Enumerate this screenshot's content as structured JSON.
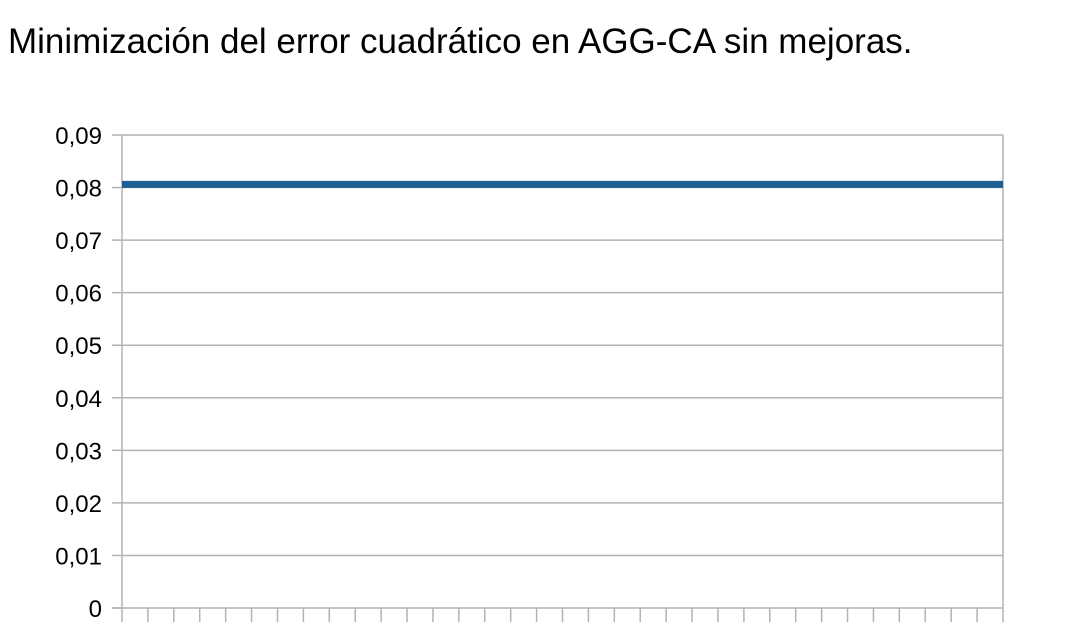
{
  "chart_data": {
    "type": "line",
    "title": "Minimización del error cuadrático en AGG-CA sin mejoras.",
    "xlabel": "",
    "ylabel": "",
    "ylim": [
      0,
      0.09
    ],
    "yticks": [
      "0",
      "0,01",
      "0,02",
      "0,03",
      "0,04",
      "0,05",
      "0,06",
      "0,07",
      "0,08",
      "0,09"
    ],
    "x_category_count": 34,
    "grid": true,
    "legend": "none",
    "series": [
      {
        "color": "#1f5e93",
        "values": [
          0.0806,
          0.0806,
          0.0806,
          0.0806,
          0.0806,
          0.0806,
          0.0806,
          0.0806,
          0.0806,
          0.0806,
          0.0806,
          0.0806,
          0.0806,
          0.0806,
          0.0806,
          0.0806,
          0.0806,
          0.0806,
          0.0806,
          0.0806,
          0.0806,
          0.0806,
          0.0806,
          0.0806,
          0.0806,
          0.0806,
          0.0806,
          0.0806,
          0.0806,
          0.0806,
          0.0806,
          0.0806,
          0.0806,
          0.0806
        ]
      }
    ]
  }
}
